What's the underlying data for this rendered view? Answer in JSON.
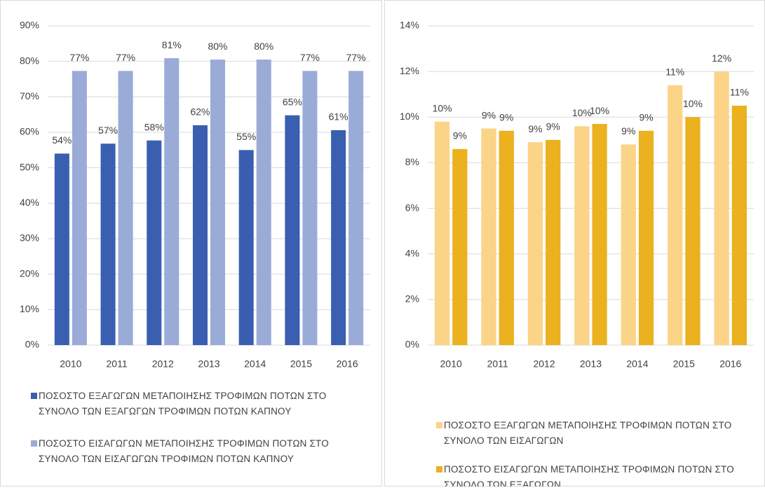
{
  "chart_data": [
    {
      "type": "bar",
      "categories": [
        "2010",
        "2011",
        "2012",
        "2013",
        "2014",
        "2015",
        "2016"
      ],
      "series": [
        {
          "name": "ΠΟΣΟΣΤΟ ΕΞΑΓΩΓΩΝ ΜΕΤΑΠΟΙΗΣΗΣ ΤΡΟΦΙΜΩΝ ΠΟΤΩΝ ΣΤΟ ΣΥΝΟΛΟ ΤΩΝ ΕΞΑΓΩΓΩΝ ΤΡΟΦΙΜΩΝ ΠΟΤΩΝ ΚΑΠΝΟΥ",
          "color": "#3a5fb0",
          "values": [
            54,
            56.8,
            57.7,
            62,
            55,
            64.8,
            60.6
          ],
          "value_labels": [
            "54%",
            "57%",
            "58%",
            "62%",
            "55%",
            "65%",
            "61%"
          ]
        },
        {
          "name": "ΠΟΣΟΣΤΟ ΕΙΣΑΓΩΓΩΝ ΜΕΤΑΠΟΙΗΣΗΣ ΤΡΟΦΙΜΩΝ ΠΟΤΩΝ ΣΤΟ ΣΥΝΟΛΟ ΤΩΝ ΕΙΣΑΓΩΓΩΝ ΤΡΟΦΙΜΩΝ ΠΟΤΩΝ ΚΑΠΝΟΥ",
          "color": "#9aabd8",
          "values": [
            77.3,
            77.3,
            80.9,
            80.5,
            80.5,
            77.3,
            77.3
          ],
          "value_labels": [
            "77%",
            "77%",
            "81%",
            "80%",
            "80%",
            "77%",
            "77%"
          ]
        }
      ],
      "ylim": [
        0,
        90
      ],
      "yticks": [
        {
          "value": 0,
          "label": "0%"
        },
        {
          "value": 10,
          "label": "10%"
        },
        {
          "value": 20,
          "label": "20%"
        },
        {
          "value": 30,
          "label": "30%"
        },
        {
          "value": 40,
          "label": "40%"
        },
        {
          "value": 50,
          "label": "50%"
        },
        {
          "value": 60,
          "label": "60%"
        },
        {
          "value": 70,
          "label": "70%"
        },
        {
          "value": 80,
          "label": "80%"
        },
        {
          "value": 90,
          "label": "90%"
        }
      ],
      "grid": true,
      "legend": "bottom"
    },
    {
      "type": "bar",
      "categories": [
        "2010",
        "2011",
        "2012",
        "2013",
        "2014",
        "2015",
        "2016"
      ],
      "series": [
        {
          "name": "ΠΟΣΟΣΤΟ ΕΞΑΓΩΓΩΝ  ΜΕΤΑΠΟΙΗΣΗΣ ΤΡΟΦΙΜΩΝ ΠΟΤΩΝ ΣΤΟ ΣΥΝΟΛΟ ΤΩΝ ΕΙΣΑΓΩΓΩΝ",
          "color": "#fbd488",
          "values": [
            9.8,
            9.5,
            8.9,
            9.6,
            8.8,
            11.4,
            12.0
          ],
          "value_labels": [
            "10%",
            "9%",
            "9%",
            "10%",
            "9%",
            "11%",
            "12%"
          ]
        },
        {
          "name": "ΠΟΣΟΣΤΟ ΕΙΣΑΓΩΓΩΝ ΜΕΤΑΠΟΙΗΣΗΣ ΤΡΟΦΙΜΩΝ ΠΟΤΩΝ ΣΤΟ ΣΥΝΟΛΟ ΤΩΝ ΕΞΑΓΩΓΩΝ",
          "color": "#ebb11f",
          "values": [
            8.6,
            9.4,
            9.0,
            9.7,
            9.4,
            10.0,
            10.5
          ],
          "value_labels": [
            "9%",
            "9%",
            "9%",
            "10%",
            "9%",
            "10%",
            "11%"
          ]
        }
      ],
      "ylim": [
        0,
        14
      ],
      "yticks": [
        {
          "value": 0,
          "label": "0%"
        },
        {
          "value": 2,
          "label": "2%"
        },
        {
          "value": 4,
          "label": "4%"
        },
        {
          "value": 6,
          "label": "6%"
        },
        {
          "value": 8,
          "label": "8%"
        },
        {
          "value": 10,
          "label": "10%"
        },
        {
          "value": 12,
          "label": "12%"
        },
        {
          "value": 14,
          "label": "14%"
        }
      ],
      "grid": true,
      "legend": "bottom"
    }
  ]
}
